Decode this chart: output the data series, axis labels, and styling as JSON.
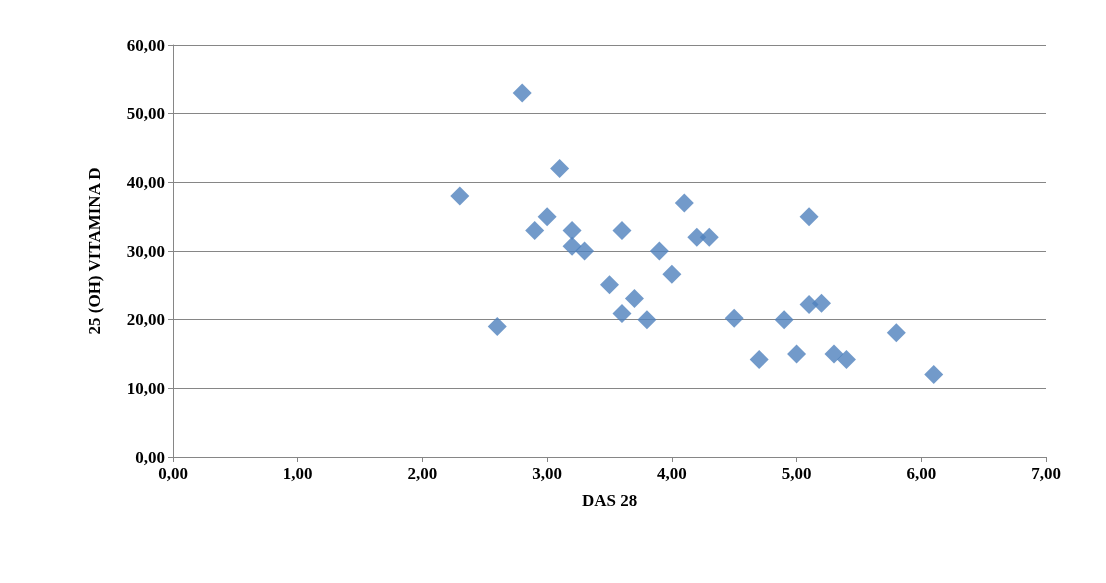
{
  "chart_data": {
    "type": "scatter",
    "xlabel": "DAS 28",
    "ylabel": "25 (OH) VITAMINA D",
    "marker": "diamond",
    "grid": "y",
    "xlim": [
      0,
      7
    ],
    "ylim": [
      0,
      60
    ],
    "xticks": [
      {
        "value": 0,
        "label": "0,00"
      },
      {
        "value": 1,
        "label": "1,00"
      },
      {
        "value": 2,
        "label": "2,00"
      },
      {
        "value": 3,
        "label": "3,00"
      },
      {
        "value": 4,
        "label": "4,00"
      },
      {
        "value": 5,
        "label": "5,00"
      },
      {
        "value": 6,
        "label": "6,00"
      },
      {
        "value": 7,
        "label": "7,00"
      }
    ],
    "yticks": [
      {
        "value": 0,
        "label": "0,00"
      },
      {
        "value": 10,
        "label": "10,00"
      },
      {
        "value": 20,
        "label": "20,00"
      },
      {
        "value": 30,
        "label": "30,00"
      },
      {
        "value": 40,
        "label": "40,00"
      },
      {
        "value": 50,
        "label": "50,00"
      },
      {
        "value": 60,
        "label": "60,00"
      }
    ],
    "series": [
      {
        "color": "#4f81bd",
        "x": [
          2.3,
          2.6,
          2.8,
          2.9,
          3.0,
          3.1,
          3.2,
          3.2,
          3.3,
          3.5,
          3.6,
          3.6,
          3.7,
          3.8,
          3.9,
          4.0,
          4.1,
          4.2,
          4.3,
          4.5,
          4.7,
          4.9,
          5.0,
          5.1,
          5.1,
          5.2,
          5.3,
          5.4,
          5.8,
          6.1
        ],
        "values": [
          38,
          19,
          53,
          33,
          35,
          42,
          33,
          30.7,
          30,
          25.1,
          33,
          20.9,
          23.1,
          20,
          30,
          26.6,
          37,
          32,
          32,
          20.2,
          14.2,
          20,
          15,
          35,
          22.2,
          22.4,
          15,
          14.2,
          18.1,
          12
        ]
      }
    ]
  }
}
